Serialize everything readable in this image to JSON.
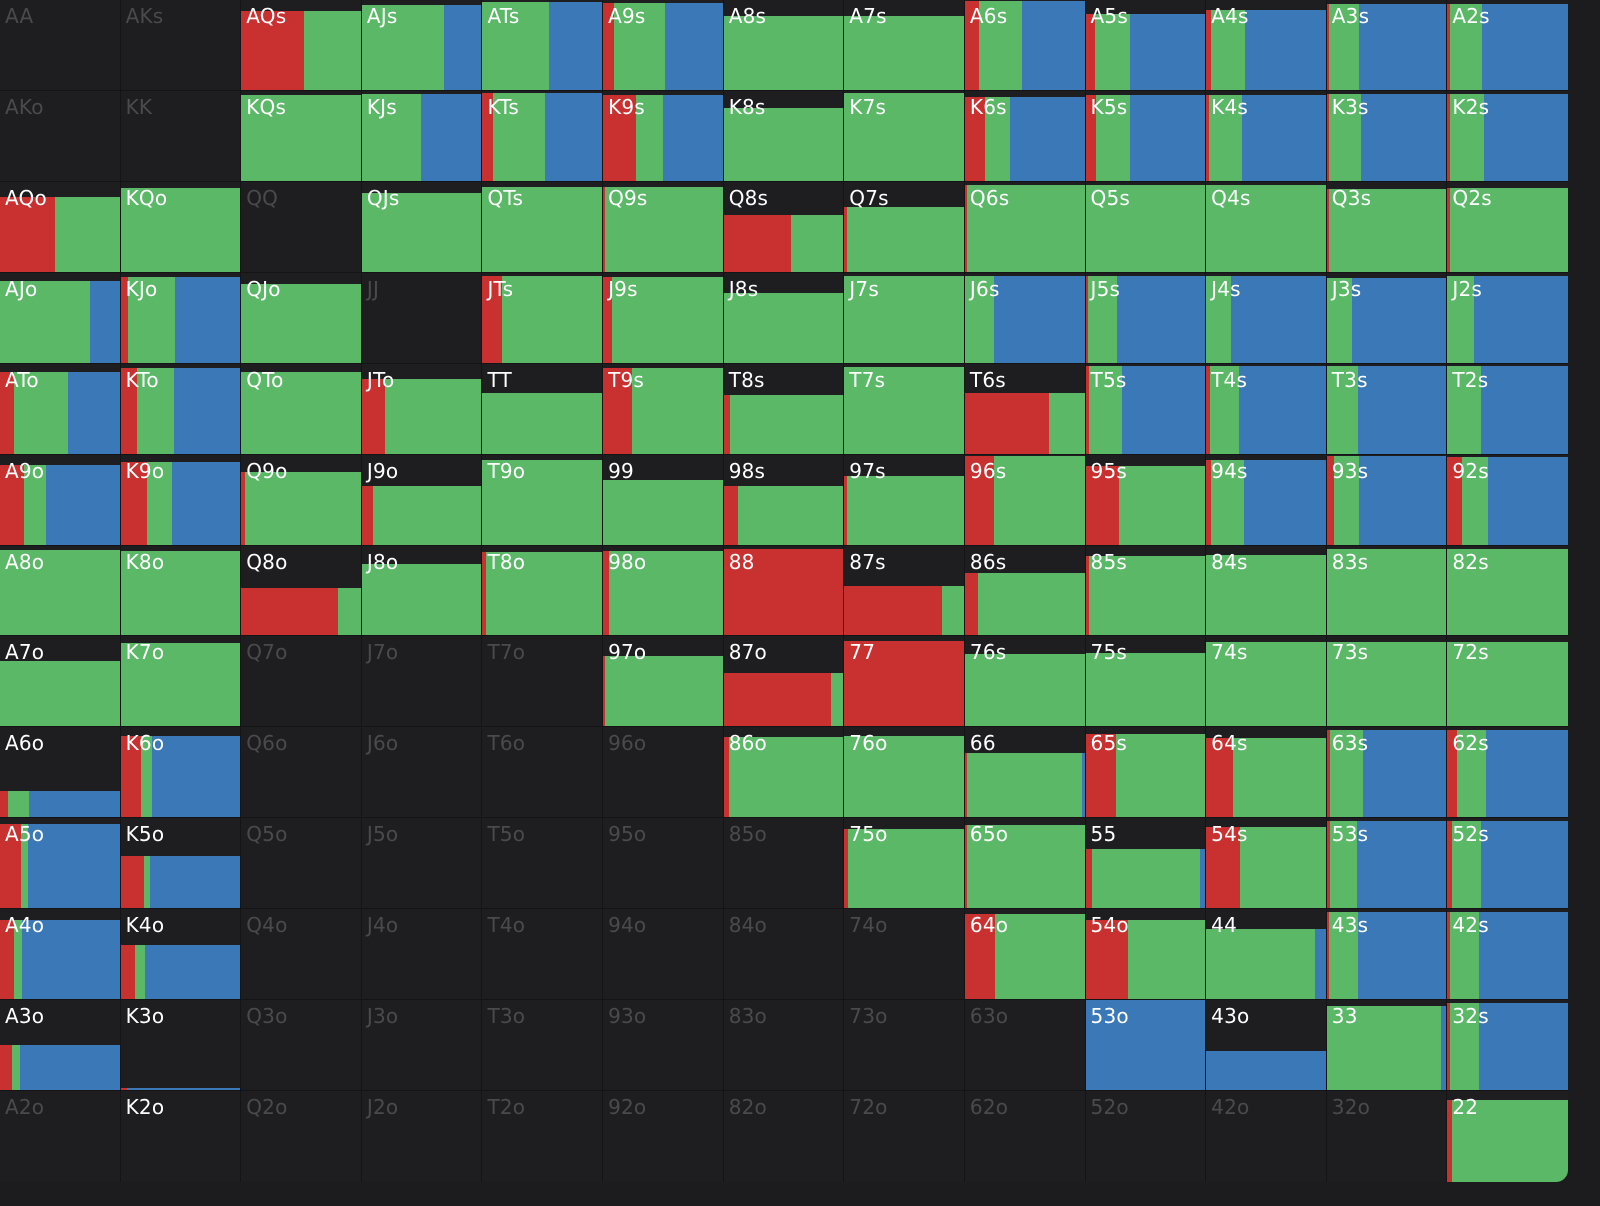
{
  "colors": {
    "raise": "#c93131",
    "call": "#5ab867",
    "fold": "#3a78b8",
    "empty": "#1e1e20"
  },
  "rows": [
    [
      [
        "AA",
        0,
        0,
        0,
        0,
        0
      ],
      [
        "AKs",
        0,
        0,
        0,
        0,
        0
      ],
      [
        "AQs",
        1,
        0.88,
        0.52,
        0.48,
        0
      ],
      [
        "AJs",
        1,
        0.95,
        0,
        0.68,
        0.32
      ],
      [
        "ATs",
        1,
        0.98,
        0,
        0.55,
        0.45
      ],
      [
        "A9s",
        1,
        0.97,
        0.09,
        0.42,
        0.49
      ],
      [
        "A8s",
        1,
        0.82,
        0,
        1,
        0
      ],
      [
        "A7s",
        1,
        0.82,
        0,
        1,
        0
      ],
      [
        "A6s",
        1,
        0.99,
        0.12,
        0.35,
        0.53
      ],
      [
        "A5s",
        1,
        0.85,
        0.08,
        0.29,
        0.63
      ],
      [
        "A4s",
        1,
        0.89,
        0.04,
        0.28,
        0.68
      ],
      [
        "A3s",
        1,
        0.96,
        0.02,
        0.25,
        0.73
      ],
      [
        "A2s",
        1,
        0.96,
        0.02,
        0.27,
        0.71
      ]
    ],
    [
      [
        "AKo",
        0,
        0,
        0,
        0,
        0
      ],
      [
        "KK",
        0,
        0,
        0,
        0,
        0
      ],
      [
        "KQs",
        1,
        0.95,
        0,
        1,
        0
      ],
      [
        "KJs",
        1,
        0.97,
        0,
        0.49,
        0.51
      ],
      [
        "KTs",
        1,
        0.98,
        0.09,
        0.43,
        0.48
      ],
      [
        "K9s",
        1,
        0.96,
        0.27,
        0.23,
        0.5
      ],
      [
        "K8s",
        1,
        0.81,
        0,
        1,
        0
      ],
      [
        "K7s",
        1,
        0.98,
        0,
        1,
        0
      ],
      [
        "K6s",
        1,
        0.93,
        0.17,
        0.2,
        0.63
      ],
      [
        "K5s",
        1,
        0.96,
        0.09,
        0.28,
        0.63
      ],
      [
        "K4s",
        1,
        0.96,
        0.02,
        0.28,
        0.7
      ],
      [
        "K3s",
        1,
        0.97,
        0.02,
        0.26,
        0.72
      ],
      [
        "K2s",
        1,
        0.97,
        0.02,
        0.28,
        0.7
      ]
    ],
    [
      [
        "AQo",
        1,
        0.83,
        0.46,
        0.54,
        0
      ],
      [
        "KQo",
        1,
        0.93,
        0,
        1,
        0
      ],
      [
        "QQ",
        0,
        0,
        0,
        0,
        0
      ],
      [
        "QJs",
        1,
        0.88,
        0,
        1,
        0
      ],
      [
        "QTs",
        1,
        0.94,
        0,
        1,
        0
      ],
      [
        "Q9s",
        1,
        0.94,
        0.02,
        0.98,
        0
      ],
      [
        "Q8s",
        1,
        0.64,
        0.56,
        0.44,
        0
      ],
      [
        "Q7s",
        1,
        0.72,
        0.02,
        0.98,
        0
      ],
      [
        "Q6s",
        1,
        0.97,
        0.02,
        0.98,
        0
      ],
      [
        "Q5s",
        1,
        0.97,
        0,
        1,
        0
      ],
      [
        "Q4s",
        1,
        0.96,
        0,
        1,
        0
      ],
      [
        "Q3s",
        1,
        0.92,
        0.02,
        0.98,
        0
      ],
      [
        "Q2s",
        1,
        0.93,
        0.02,
        0.98,
        0
      ]
    ],
    [
      [
        "AJo",
        1,
        0.91,
        0,
        0.75,
        0.25
      ],
      [
        "KJo",
        1,
        0.95,
        0.06,
        0.39,
        0.55
      ],
      [
        "QJo",
        1,
        0.88,
        0,
        1,
        0
      ],
      [
        "JJ",
        0,
        0,
        0,
        0,
        0
      ],
      [
        "JTs",
        1,
        0.96,
        0.16,
        0.84,
        0
      ],
      [
        "J9s",
        1,
        0.95,
        0.07,
        0.93,
        0
      ],
      [
        "J8s",
        1,
        0.78,
        0,
        1,
        0
      ],
      [
        "J7s",
        1,
        0.96,
        0,
        1,
        0
      ],
      [
        "J6s",
        1,
        0.96,
        0,
        0.24,
        0.76
      ],
      [
        "J5s",
        1,
        0.96,
        0.02,
        0.24,
        0.74
      ],
      [
        "J4s",
        1,
        0.97,
        0,
        0.21,
        0.79
      ],
      [
        "J3s",
        1,
        0.94,
        0,
        0.21,
        0.79
      ],
      [
        "J2s",
        1,
        0.96,
        0,
        0.22,
        0.78
      ]
    ],
    [
      [
        "ATo",
        1,
        0.91,
        0.12,
        0.44,
        0.44
      ],
      [
        "KTo",
        1,
        0.95,
        0.14,
        0.3,
        0.56
      ],
      [
        "QTo",
        1,
        0.91,
        0,
        1,
        0
      ],
      [
        "JTo",
        1,
        0.83,
        0.19,
        0.81,
        0
      ],
      [
        "TT",
        1,
        0.68,
        0,
        1,
        0
      ],
      [
        "T9s",
        1,
        0.95,
        0.24,
        0.76,
        0
      ],
      [
        "T8s",
        1,
        0.66,
        0.05,
        0.95,
        0
      ],
      [
        "T7s",
        1,
        0.96,
        0,
        1,
        0
      ],
      [
        "T6s",
        1,
        0.68,
        0.7,
        0.3,
        0
      ],
      [
        "T5s",
        1,
        0.98,
        0.03,
        0.27,
        0.7
      ],
      [
        "T4s",
        1,
        0.98,
        0.03,
        0.24,
        0.73
      ],
      [
        "T3s",
        1,
        0.97,
        0,
        0.26,
        0.74
      ],
      [
        "T2s",
        1,
        0.97,
        0,
        0.28,
        0.72
      ]
    ],
    [
      [
        "A9o",
        1,
        0.89,
        0.2,
        0.18,
        0.62
      ],
      [
        "K9o",
        1,
        0.92,
        0.22,
        0.21,
        0.57
      ],
      [
        "Q9o",
        1,
        0.81,
        0.03,
        0.97,
        0
      ],
      [
        "J9o",
        1,
        0.66,
        0.09,
        0.91,
        0
      ],
      [
        "T9o",
        1,
        0.94,
        0,
        1,
        0
      ],
      [
        "99",
        1,
        0.72,
        0,
        1,
        0
      ],
      [
        "98s",
        1,
        0.66,
        0.12,
        0.88,
        0
      ],
      [
        "97s",
        1,
        0.77,
        0.02,
        0.98,
        0
      ],
      [
        "96s",
        1,
        0.98,
        0.24,
        0.76,
        0
      ],
      [
        "95s",
        1,
        0.87,
        0.28,
        0.72,
        0
      ],
      [
        "94s",
        1,
        0.94,
        0.04,
        0.27,
        0.69
      ],
      [
        "93s",
        1,
        0.98,
        0.06,
        0.21,
        0.73
      ],
      [
        "92s",
        1,
        0.97,
        0.12,
        0.22,
        0.66
      ]
    ],
    [
      [
        "A8o",
        1,
        0.95,
        0,
        1,
        0
      ],
      [
        "K8o",
        1,
        0.94,
        0,
        1,
        0
      ],
      [
        "Q8o",
        1,
        0.53,
        0.8,
        0.2,
        0
      ],
      [
        "J8o",
        1,
        0.8,
        0,
        1,
        0
      ],
      [
        "T8o",
        1,
        0.93,
        0.03,
        0.97,
        0
      ],
      [
        "98o",
        1,
        0.94,
        0.05,
        0.95,
        0
      ],
      [
        "88",
        1,
        0.96,
        1,
        0,
        0
      ],
      [
        "87s",
        1,
        0.56,
        0.81,
        0.19,
        0
      ],
      [
        "86s",
        1,
        0.7,
        0.11,
        0.89,
        0
      ],
      [
        "85s",
        1,
        0.89,
        0.03,
        0.97,
        0
      ],
      [
        "84s",
        1,
        0.9,
        0,
        1,
        0
      ],
      [
        "83s",
        1,
        0.96,
        0,
        1,
        0
      ],
      [
        "82s",
        1,
        0.96,
        0,
        1,
        0
      ]
    ],
    [
      [
        "A7o",
        1,
        0.73,
        0,
        1,
        0
      ],
      [
        "K7o",
        1,
        0.93,
        0,
        1,
        0
      ],
      [
        "Q7o",
        0,
        0,
        0,
        0,
        0
      ],
      [
        "J7o",
        0,
        0,
        0,
        0,
        0
      ],
      [
        "T7o",
        0,
        0,
        0,
        0,
        0
      ],
      [
        "97o",
        1,
        0.79,
        0.02,
        0.98,
        0
      ],
      [
        "87o",
        1,
        0.6,
        0.89,
        0.11,
        0
      ],
      [
        "77",
        1,
        0.95,
        1,
        0,
        0
      ],
      [
        "76s",
        1,
        0.81,
        0,
        1,
        0
      ],
      [
        "75s",
        1,
        0.82,
        0,
        1,
        0
      ],
      [
        "74s",
        1,
        0.94,
        0,
        1,
        0
      ],
      [
        "73s",
        1,
        0.94,
        0,
        1,
        0
      ],
      [
        "72s",
        1,
        0.94,
        0,
        1,
        0
      ]
    ],
    [
      [
        "A6o",
        1,
        0.3,
        0.07,
        0.17,
        0.76
      ],
      [
        "K6o",
        1,
        0.9,
        0.17,
        0.09,
        0.74
      ],
      [
        "Q6o",
        0,
        0,
        0,
        0,
        0
      ],
      [
        "J6o",
        0,
        0,
        0,
        0,
        0
      ],
      [
        "T6o",
        0,
        0,
        0,
        0,
        0
      ],
      [
        "96o",
        0,
        0,
        0,
        0,
        0
      ],
      [
        "86o",
        1,
        0.89,
        0.04,
        0.96,
        0
      ],
      [
        "76o",
        1,
        0.9,
        0,
        1,
        0
      ],
      [
        "66",
        1,
        0.72,
        0.02,
        0.95,
        0.03
      ],
      [
        "65s",
        1,
        0.93,
        0.25,
        0.75,
        0
      ],
      [
        "64s",
        1,
        0.88,
        0.22,
        0.78,
        0
      ],
      [
        "63s",
        1,
        0.97,
        0.03,
        0.27,
        0.7
      ],
      [
        "62s",
        1,
        0.97,
        0.08,
        0.24,
        0.68
      ]
    ],
    [
      [
        "A5o",
        1,
        0.94,
        0.17,
        0.06,
        0.77
      ],
      [
        "K5o",
        1,
        0.59,
        0.19,
        0.05,
        0.76
      ],
      [
        "Q5o",
        0,
        0,
        0,
        0,
        0
      ],
      [
        "J5o",
        0,
        0,
        0,
        0,
        0
      ],
      [
        "T5o",
        0,
        0,
        0,
        0,
        0
      ],
      [
        "95o",
        0,
        0,
        0,
        0,
        0
      ],
      [
        "85o",
        0,
        0,
        0,
        0,
        0
      ],
      [
        "75o",
        1,
        0.88,
        0.03,
        0.97,
        0
      ],
      [
        "65o",
        1,
        0.93,
        0.02,
        0.98,
        0
      ],
      [
        "55",
        1,
        0.66,
        0.05,
        0.9,
        0.05
      ],
      [
        "54s",
        1,
        0.9,
        0.28,
        0.72,
        0
      ],
      [
        "53s",
        1,
        0.97,
        0.03,
        0.22,
        0.75
      ],
      [
        "52s",
        1,
        0.97,
        0.04,
        0.24,
        0.72
      ]
    ],
    [
      [
        "A4o",
        1,
        0.88,
        0.12,
        0.06,
        0.82
      ],
      [
        "K4o",
        1,
        0.61,
        0.12,
        0.08,
        0.8
      ],
      [
        "Q4o",
        0,
        0,
        0,
        0,
        0
      ],
      [
        "J4o",
        0,
        0,
        0,
        0,
        0
      ],
      [
        "T4o",
        0,
        0,
        0,
        0,
        0
      ],
      [
        "94o",
        0,
        0,
        0,
        0,
        0
      ],
      [
        "84o",
        0,
        0,
        0,
        0,
        0
      ],
      [
        "74o",
        0,
        0,
        0,
        0,
        0
      ],
      [
        "64o",
        1,
        0.95,
        0.25,
        0.75,
        0
      ],
      [
        "54o",
        1,
        0.88,
        0.35,
        0.65,
        0
      ],
      [
        "44",
        1,
        0.78,
        0,
        0.9,
        0.1
      ],
      [
        "43s",
        1,
        0.97,
        0.02,
        0.24,
        0.74
      ],
      [
        "42s",
        1,
        0.97,
        0.02,
        0.24,
        0.74
      ]
    ],
    [
      [
        "A3o",
        1,
        0.51,
        0.1,
        0.07,
        0.83
      ],
      [
        "K3o",
        1,
        0.03,
        0.05,
        0,
        0.95
      ],
      [
        "Q3o",
        0,
        0,
        0,
        0,
        0
      ],
      [
        "J3o",
        0,
        0,
        0,
        0,
        0
      ],
      [
        "T3o",
        0,
        0,
        0,
        0,
        0
      ],
      [
        "93o",
        0,
        0,
        0,
        0,
        0
      ],
      [
        "83o",
        0,
        0,
        0,
        0,
        0
      ],
      [
        "73o",
        0,
        0,
        0,
        0,
        0
      ],
      [
        "63o",
        0,
        0,
        0,
        0,
        0
      ],
      [
        "53o",
        1,
        1,
        0,
        0,
        1
      ],
      [
        "43o",
        1,
        0.44,
        0,
        0,
        1
      ],
      [
        "33",
        1,
        0.94,
        0,
        0.95,
        0.05
      ],
      [
        "32s",
        1,
        0.97,
        0.02,
        0.24,
        0.74
      ]
    ],
    [
      [
        "A2o",
        0,
        0,
        0,
        0,
        0
      ],
      [
        "K2o",
        1,
        0,
        0,
        0,
        0
      ],
      [
        "Q2o",
        0,
        0,
        0,
        0,
        0
      ],
      [
        "J2o",
        0,
        0,
        0,
        0,
        0
      ],
      [
        "T2o",
        0,
        0,
        0,
        0,
        0
      ],
      [
        "92o",
        0,
        0,
        0,
        0,
        0
      ],
      [
        "82o",
        0,
        0,
        0,
        0,
        0
      ],
      [
        "72o",
        0,
        0,
        0,
        0,
        0
      ],
      [
        "62o",
        0,
        0,
        0,
        0,
        0
      ],
      [
        "52o",
        0,
        0,
        0,
        0,
        0
      ],
      [
        "42o",
        0,
        0,
        0,
        0,
        0
      ],
      [
        "32o",
        0,
        0,
        0,
        0,
        0
      ],
      [
        "22",
        1,
        0.9,
        0.04,
        0.96,
        0
      ]
    ]
  ]
}
